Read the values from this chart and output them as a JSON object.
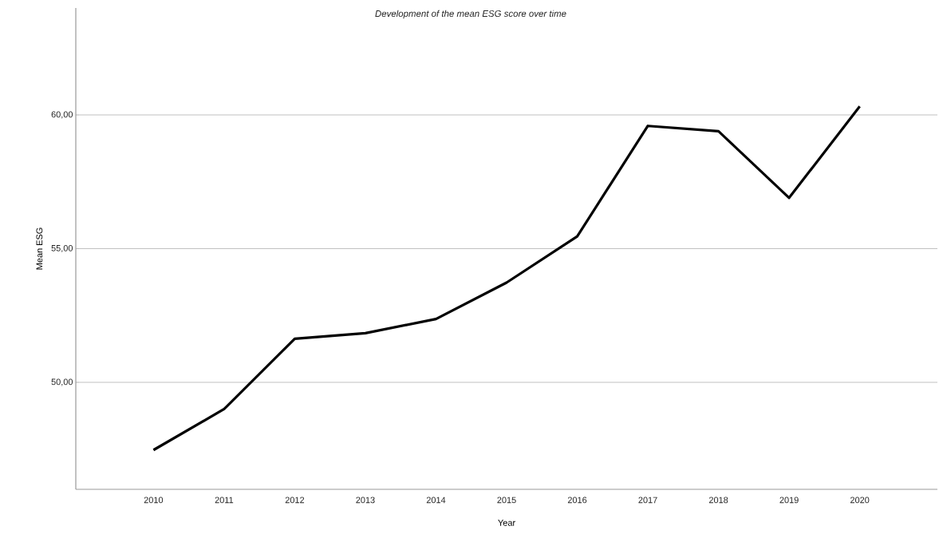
{
  "chart_data": {
    "type": "line",
    "title": "Development of the mean ESG score over time",
    "xlabel": "Year",
    "ylabel": "Mean ESG",
    "categories": [
      "2010",
      "2011",
      "2012",
      "2013",
      "2014",
      "2015",
      "2016",
      "2017",
      "2018",
      "2019",
      "2020"
    ],
    "values": [
      47.47,
      49.0,
      51.63,
      51.84,
      52.37,
      53.73,
      55.46,
      59.59,
      59.39,
      56.9,
      60.32
    ],
    "color": "#000000",
    "ylim": [
      46,
      64
    ],
    "yticks": [
      {
        "value": 50,
        "label": "50,00"
      },
      {
        "value": 55,
        "label": "55,00"
      },
      {
        "value": 60,
        "label": "60,00"
      }
    ],
    "grid": "y",
    "marker": "none",
    "line_style": "solid"
  }
}
